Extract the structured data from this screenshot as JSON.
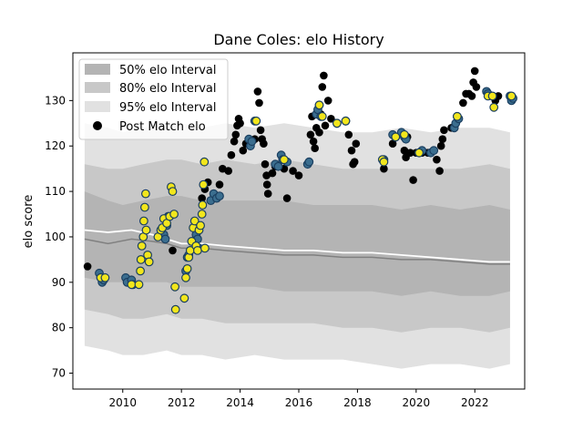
{
  "chart_data": {
    "type": "scatter",
    "title": "Dane Coles: elo History",
    "xlabel": "",
    "ylabel": "elo score",
    "xlim": [
      2008.3,
      2023.7
    ],
    "ylim": [
      66.5,
      140.5
    ],
    "x_ticks": [
      2010,
      2012,
      2014,
      2016,
      2018,
      2020,
      2022
    ],
    "y_ticks": [
      70,
      80,
      90,
      100,
      110,
      120,
      130
    ],
    "grid": false,
    "legend_position": "top-left",
    "legend": [
      {
        "label": "50% elo Interval",
        "kind": "patch",
        "color": "#b4b4b4"
      },
      {
        "label": "80% elo Interval",
        "kind": "patch",
        "color": "#c8c8c8"
      },
      {
        "label": "95% elo Interval",
        "kind": "patch",
        "color": "#e1e1e1"
      },
      {
        "label": "Post Match elo",
        "kind": "marker",
        "color": "#000000"
      }
    ],
    "colors": {
      "band_50": "#b4b4b4",
      "band_80": "#c8c8c8",
      "band_95": "#e1e1e1",
      "median_line": "#808080",
      "mean_line": "#ffffff",
      "black_point": "#000000",
      "blue_point_fill": "#3b6e8f",
      "blue_point_edge": "#1b3f60",
      "yellow_point_fill": "#f2e61c",
      "yellow_point_edge": "#1b3f60"
    },
    "bands": {
      "x": [
        2008.7,
        2009.5,
        2010.0,
        2010.7,
        2011.5,
        2012.0,
        2012.7,
        2013.5,
        2014.5,
        2015.5,
        2016.5,
        2017.5,
        2018.5,
        2019.5,
        2020.5,
        2021.5,
        2022.5,
        2023.2
      ],
      "p95_low": [
        76,
        75,
        74,
        74,
        75,
        74,
        74,
        73,
        74,
        73,
        73,
        73,
        72,
        71,
        72,
        72,
        71,
        72
      ],
      "p95_high": [
        125,
        124,
        123,
        124,
        125,
        125,
        124,
        125,
        124,
        125,
        124,
        123,
        123,
        124,
        123,
        124,
        124,
        123
      ],
      "p80_low": [
        84,
        83,
        82,
        82,
        83,
        82,
        82,
        81,
        81,
        81,
        81,
        80,
        80,
        79,
        80,
        80,
        79,
        80
      ],
      "p80_high": [
        116,
        115,
        115,
        116,
        117,
        117,
        116,
        117,
        116,
        117,
        116,
        115,
        115,
        115,
        115,
        115,
        116,
        115
      ],
      "p50_low": [
        91,
        90,
        90,
        90,
        90,
        89,
        89,
        89,
        89,
        88,
        88,
        88,
        88,
        87,
        88,
        87,
        87,
        88
      ],
      "p50_high": [
        110,
        108,
        107,
        108,
        109,
        109,
        108,
        108,
        108,
        108,
        107,
        107,
        107,
        106,
        107,
        106,
        107,
        106
      ]
    },
    "median_line": {
      "x": [
        2008.7,
        2009.5,
        2010.3,
        2011.0,
        2011.5,
        2012.0,
        2012.7,
        2013.5,
        2014.5,
        2015.5,
        2016.5,
        2017.5,
        2018.5,
        2019.5,
        2020.5,
        2021.5,
        2022.5,
        2023.2
      ],
      "y": [
        99.5,
        98.5,
        99.5,
        99.0,
        98.5,
        97.5,
        97.5,
        97.0,
        96.5,
        96.0,
        96.0,
        95.5,
        95.5,
        95.0,
        95.0,
        94.5,
        94.0,
        94.0
      ]
    },
    "mean_line": {
      "x": [
        2008.7,
        2009.5,
        2010.3,
        2011.0,
        2011.5,
        2012.0,
        2012.7,
        2013.5,
        2014.5,
        2015.5,
        2016.5,
        2017.5,
        2018.5,
        2019.5,
        2020.5,
        2021.5,
        2022.5,
        2023.2
      ],
      "y": [
        101.5,
        101.0,
        101.5,
        100.5,
        99.5,
        98.5,
        98.5,
        98.0,
        97.5,
        97.0,
        97.0,
        96.5,
        96.5,
        96.0,
        95.5,
        95.0,
        94.5,
        94.5
      ]
    },
    "series": [
      {
        "style": "black",
        "points": [
          [
            2008.8,
            93.5
          ],
          [
            2011.7,
            97
          ],
          [
            2012.7,
            108.5
          ],
          [
            2012.8,
            110.5
          ],
          [
            2012.9,
            112
          ],
          [
            2013.3,
            111.5
          ],
          [
            2013.4,
            115
          ],
          [
            2013.6,
            114.5
          ],
          [
            2013.7,
            118
          ],
          [
            2013.8,
            121
          ],
          [
            2013.85,
            122.5
          ],
          [
            2013.9,
            124.5
          ],
          [
            2013.95,
            126
          ],
          [
            2014.0,
            125
          ],
          [
            2014.1,
            119
          ],
          [
            2014.2,
            120.5
          ],
          [
            2014.3,
            121
          ],
          [
            2014.5,
            121.5
          ],
          [
            2014.6,
            132
          ],
          [
            2014.65,
            129.5
          ],
          [
            2014.7,
            123.5
          ],
          [
            2014.75,
            121.5
          ],
          [
            2014.8,
            120.5
          ],
          [
            2014.85,
            116
          ],
          [
            2014.9,
            113.5
          ],
          [
            2014.92,
            111.5
          ],
          [
            2014.95,
            109.5
          ],
          [
            2015.1,
            114
          ],
          [
            2015.2,
            115.5
          ],
          [
            2015.5,
            115
          ],
          [
            2015.6,
            108.5
          ],
          [
            2015.8,
            114.5
          ],
          [
            2016.0,
            113.5
          ],
          [
            2016.4,
            122.5
          ],
          [
            2016.45,
            126.5
          ],
          [
            2016.5,
            121
          ],
          [
            2016.55,
            119.5
          ],
          [
            2016.6,
            124
          ],
          [
            2016.7,
            123
          ],
          [
            2016.75,
            127
          ],
          [
            2016.8,
            133
          ],
          [
            2016.85,
            135.5
          ],
          [
            2016.9,
            124.5
          ],
          [
            2017.0,
            130
          ],
          [
            2017.1,
            126
          ],
          [
            2017.6,
            125.5
          ],
          [
            2017.7,
            122.5
          ],
          [
            2017.8,
            119
          ],
          [
            2017.85,
            116
          ],
          [
            2017.9,
            116.5
          ],
          [
            2017.95,
            120.5
          ],
          [
            2018.9,
            115
          ],
          [
            2019.2,
            120.5
          ],
          [
            2019.6,
            119
          ],
          [
            2019.65,
            117.5
          ],
          [
            2019.7,
            122
          ],
          [
            2019.8,
            118.5
          ],
          [
            2019.9,
            112.5
          ],
          [
            2020.0,
            118.5
          ],
          [
            2020.2,
            118.5
          ],
          [
            2020.4,
            118.5
          ],
          [
            2020.7,
            117
          ],
          [
            2020.8,
            114.5
          ],
          [
            2020.85,
            120
          ],
          [
            2020.9,
            121.5
          ],
          [
            2020.95,
            123.5
          ],
          [
            2021.2,
            124
          ],
          [
            2021.6,
            129.5
          ],
          [
            2021.7,
            131.5
          ],
          [
            2021.8,
            131.5
          ],
          [
            2021.9,
            131
          ],
          [
            2021.95,
            134
          ],
          [
            2022.0,
            136.5
          ],
          [
            2022.05,
            133
          ],
          [
            2022.6,
            131
          ],
          [
            2022.65,
            128.5
          ],
          [
            2022.7,
            130
          ],
          [
            2022.8,
            131
          ]
        ]
      },
      {
        "style": "blue",
        "points": [
          [
            2009.2,
            92
          ],
          [
            2009.25,
            91
          ],
          [
            2009.3,
            90
          ],
          [
            2009.35,
            90.5
          ],
          [
            2010.1,
            91
          ],
          [
            2010.15,
            90
          ],
          [
            2010.3,
            90.5
          ],
          [
            2010.35,
            89.5
          ],
          [
            2011.4,
            100.5
          ],
          [
            2011.45,
            99.5
          ],
          [
            2011.5,
            102.5
          ],
          [
            2011.55,
            104.5
          ],
          [
            2012.15,
            92.5
          ],
          [
            2012.2,
            95.5
          ],
          [
            2012.25,
            96
          ],
          [
            2012.5,
            100.5
          ],
          [
            2012.55,
            99.5
          ],
          [
            2012.6,
            97.5
          ],
          [
            2013.0,
            108
          ],
          [
            2013.1,
            109.5
          ],
          [
            2013.2,
            108.5
          ],
          [
            2013.3,
            109
          ],
          [
            2014.3,
            121.5
          ],
          [
            2014.35,
            120
          ],
          [
            2014.4,
            121
          ],
          [
            2014.5,
            125.5
          ],
          [
            2015.2,
            116
          ],
          [
            2015.3,
            115.5
          ],
          [
            2015.4,
            118
          ],
          [
            2015.45,
            117
          ],
          [
            2015.6,
            116.5
          ],
          [
            2016.3,
            116
          ],
          [
            2016.35,
            116.5
          ],
          [
            2016.6,
            127
          ],
          [
            2016.65,
            128
          ],
          [
            2016.7,
            129
          ],
          [
            2016.75,
            126.5
          ],
          [
            2017.3,
            125
          ],
          [
            2017.6,
            125.5
          ],
          [
            2018.9,
            117
          ],
          [
            2019.2,
            122.5
          ],
          [
            2019.3,
            122
          ],
          [
            2019.5,
            123
          ],
          [
            2019.6,
            122
          ],
          [
            2019.65,
            121.5
          ],
          [
            2020.1,
            118.5
          ],
          [
            2020.2,
            119
          ],
          [
            2020.5,
            118.5
          ],
          [
            2020.6,
            119
          ],
          [
            2021.3,
            124
          ],
          [
            2021.35,
            125
          ],
          [
            2021.4,
            126.5
          ],
          [
            2021.45,
            126
          ],
          [
            2022.4,
            132
          ],
          [
            2022.45,
            131.5
          ],
          [
            2023.2,
            131
          ],
          [
            2023.25,
            130
          ],
          [
            2023.3,
            130.5
          ]
        ]
      },
      {
        "style": "yellow",
        "points": [
          [
            2009.25,
            91
          ],
          [
            2009.4,
            91
          ],
          [
            2010.3,
            89.5
          ],
          [
            2010.55,
            89.5
          ],
          [
            2010.6,
            92.5
          ],
          [
            2010.62,
            95
          ],
          [
            2010.65,
            98
          ],
          [
            2010.7,
            100
          ],
          [
            2010.72,
            103.5
          ],
          [
            2010.75,
            106.5
          ],
          [
            2010.78,
            109.5
          ],
          [
            2010.8,
            101.5
          ],
          [
            2010.85,
            96
          ],
          [
            2010.9,
            94.5
          ],
          [
            2011.2,
            100
          ],
          [
            2011.3,
            101.5
          ],
          [
            2011.35,
            102
          ],
          [
            2011.4,
            104
          ],
          [
            2011.5,
            103
          ],
          [
            2011.6,
            104.5
          ],
          [
            2011.65,
            111
          ],
          [
            2011.7,
            110
          ],
          [
            2011.75,
            105
          ],
          [
            2011.78,
            89
          ],
          [
            2011.8,
            84
          ],
          [
            2012.1,
            86.5
          ],
          [
            2012.15,
            91
          ],
          [
            2012.2,
            93
          ],
          [
            2012.25,
            95.5
          ],
          [
            2012.3,
            97
          ],
          [
            2012.35,
            99
          ],
          [
            2012.4,
            102
          ],
          [
            2012.45,
            103.5
          ],
          [
            2012.5,
            98
          ],
          [
            2012.55,
            97
          ],
          [
            2012.6,
            101.5
          ],
          [
            2012.65,
            102.5
          ],
          [
            2012.7,
            105
          ],
          [
            2012.72,
            107
          ],
          [
            2012.75,
            111.5
          ],
          [
            2012.78,
            116.5
          ],
          [
            2012.8,
            97.5
          ],
          [
            2014.55,
            125.5
          ],
          [
            2015.5,
            117
          ],
          [
            2016.7,
            129
          ],
          [
            2016.8,
            126.5
          ],
          [
            2017.3,
            125
          ],
          [
            2017.6,
            125.5
          ],
          [
            2018.85,
            117
          ],
          [
            2018.9,
            116.5
          ],
          [
            2019.3,
            122
          ],
          [
            2019.6,
            122.5
          ],
          [
            2020.1,
            118.5
          ],
          [
            2021.4,
            126.5
          ],
          [
            2022.45,
            131
          ],
          [
            2022.6,
            131
          ],
          [
            2022.65,
            128.5
          ],
          [
            2023.25,
            131
          ]
        ]
      }
    ]
  }
}
